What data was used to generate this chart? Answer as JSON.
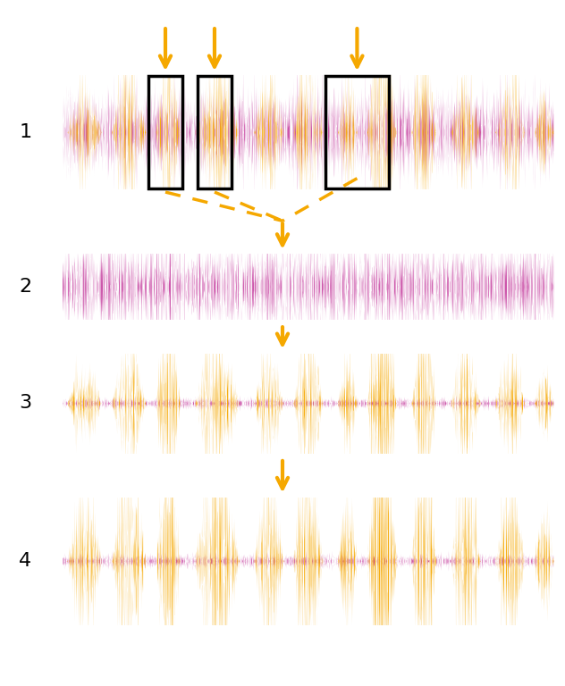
{
  "orange": "#F5A800",
  "purple": "#CC55AA",
  "black": "#000000",
  "background": "#FFFFFF",
  "fig_width": 6.32,
  "fig_height": 7.68,
  "dpi": 100,
  "num_samples": 3000,
  "seed": 7
}
